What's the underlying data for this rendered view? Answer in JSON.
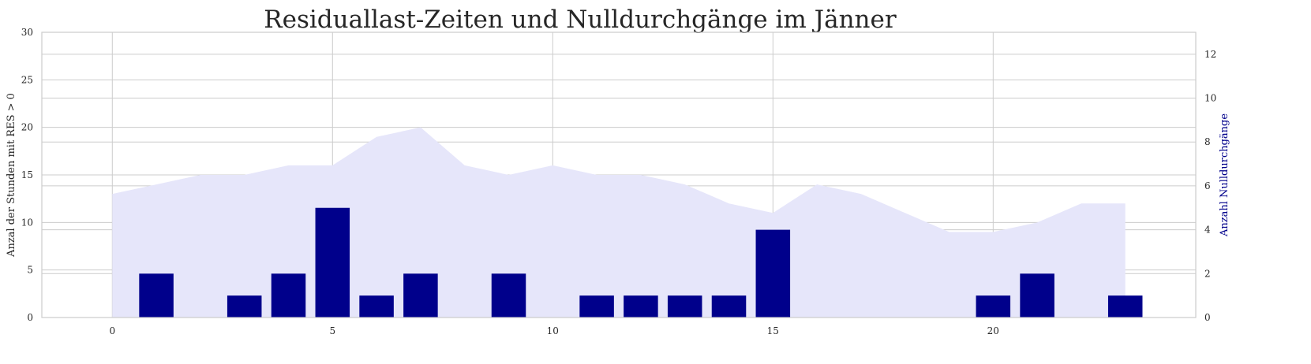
{
  "chart_data": {
    "type": "bar",
    "title": "Residuallast-Zeiten und Nulldurchgänge im Jänner",
    "xlabel": "",
    "ylabel": "Anzal der Stunden mit RES > 0",
    "ylabel_right": "Anzahl Nulldurchgänge",
    "x": [
      0,
      1,
      2,
      3,
      4,
      5,
      6,
      7,
      8,
      9,
      10,
      11,
      12,
      13,
      14,
      15,
      16,
      17,
      18,
      19,
      20,
      21,
      22,
      23
    ],
    "xlim": [
      -1.6,
      24.6
    ],
    "ylim": [
      0,
      30
    ],
    "ylim_right": [
      0,
      13
    ],
    "xticks": [
      0,
      5,
      10,
      15,
      20
    ],
    "yticks": [
      0,
      5,
      10,
      15,
      20,
      25,
      30
    ],
    "yticks_right": [
      0,
      2,
      4,
      6,
      8,
      10,
      12
    ],
    "grid": true,
    "series": [
      {
        "kind": "area",
        "axis": "left",
        "color": "#e6e6fa",
        "values": [
          13,
          14,
          15,
          15,
          16,
          16,
          19,
          20,
          16,
          15,
          16,
          15,
          15,
          14,
          12,
          11,
          14,
          13,
          11,
          9,
          9,
          10,
          12,
          12
        ]
      },
      {
        "kind": "bar",
        "axis": "right",
        "color": "#00008b",
        "values": [
          0,
          2,
          0,
          1,
          2,
          5,
          1,
          2,
          0,
          2,
          0,
          1,
          1,
          1,
          1,
          4,
          0,
          0,
          0,
          0,
          1,
          2,
          0,
          1
        ]
      }
    ]
  }
}
